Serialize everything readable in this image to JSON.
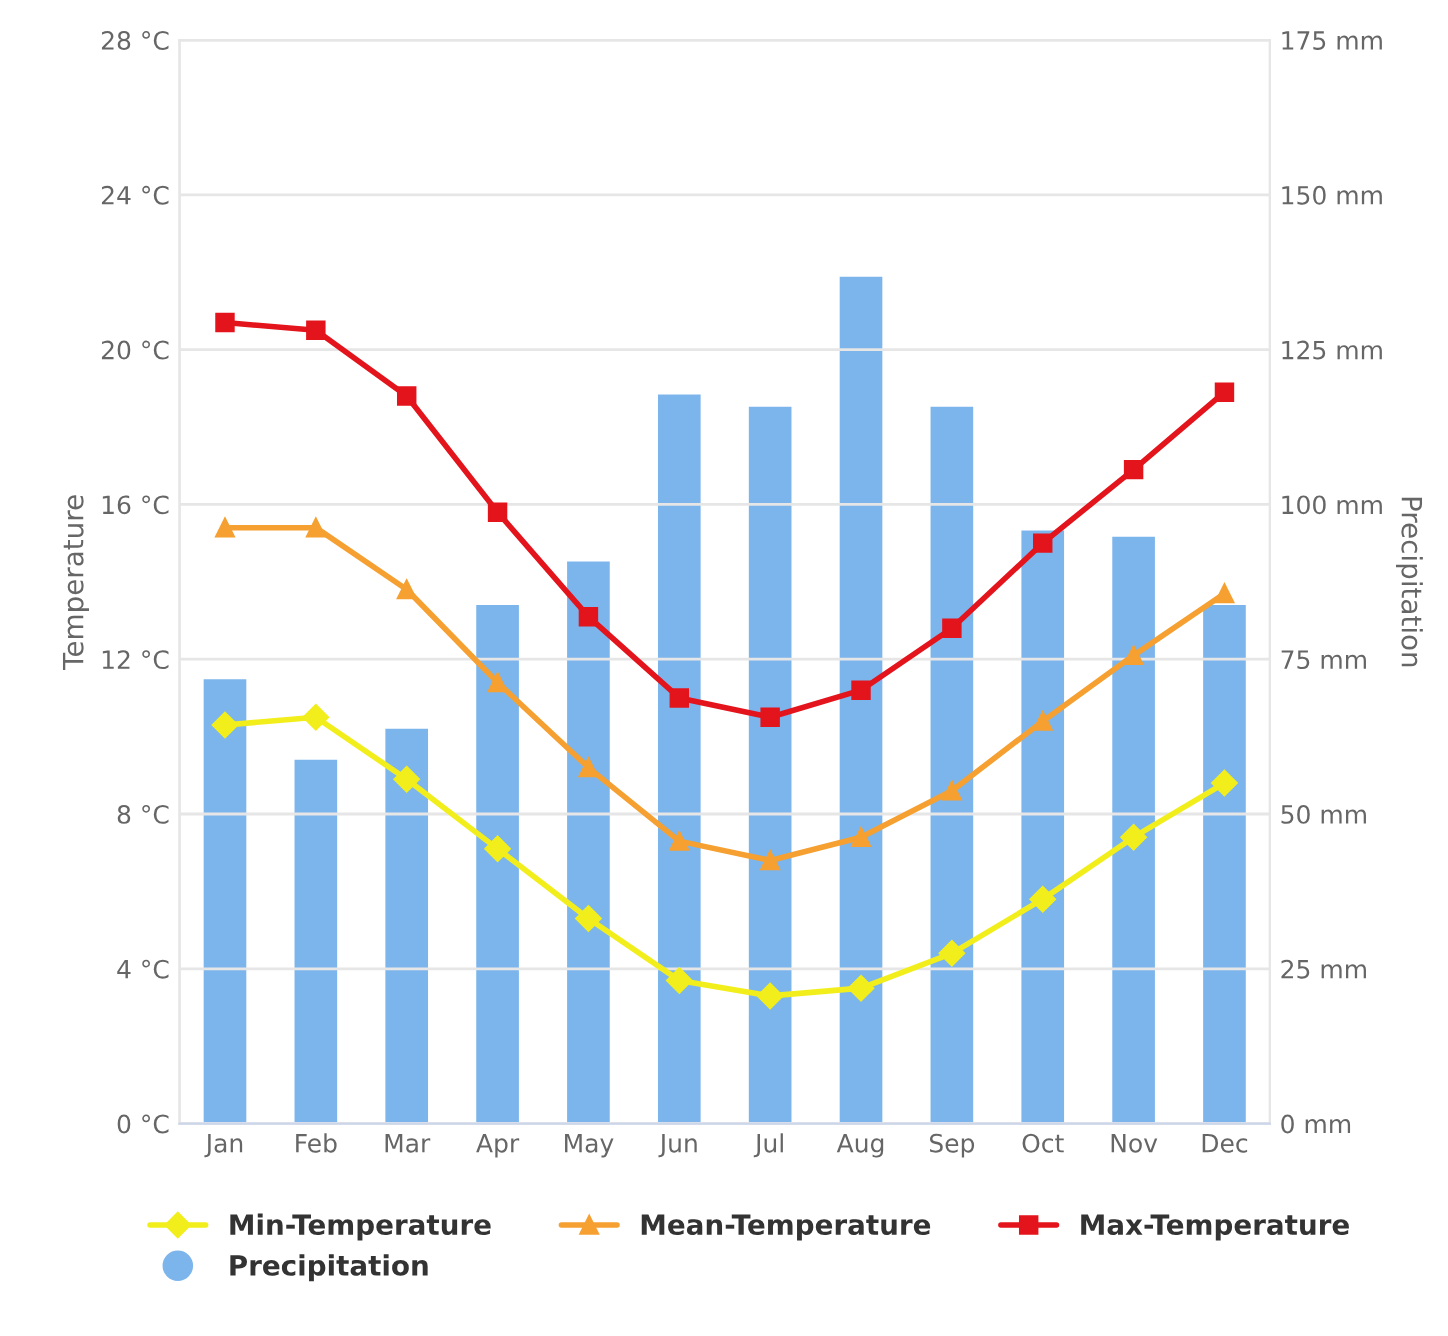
{
  "chart_data": {
    "type": "bar",
    "categories": [
      "Jan",
      "Feb",
      "Mar",
      "Apr",
      "May",
      "Jun",
      "Jul",
      "Aug",
      "Sep",
      "Oct",
      "Nov",
      "Dec"
    ],
    "ylabel": "Temperature",
    "y2label": "Precipitation",
    "ylim": [
      0,
      28
    ],
    "yticks": [
      {
        "value": 0,
        "label": "0 °C"
      },
      {
        "value": 4,
        "label": "4 °C"
      },
      {
        "value": 8,
        "label": "8 °C"
      },
      {
        "value": 12,
        "label": "12 °C"
      },
      {
        "value": 16,
        "label": "16 °C"
      },
      {
        "value": 20,
        "label": "20 °C"
      },
      {
        "value": 24,
        "label": "24 °C"
      },
      {
        "value": 28,
        "label": "28 °C"
      }
    ],
    "y2lim": [
      0,
      175
    ],
    "y2ticks": [
      {
        "value": 0,
        "label": "0 mm"
      },
      {
        "value": 25,
        "label": "25 mm"
      },
      {
        "value": 50,
        "label": "50 mm"
      },
      {
        "value": 75,
        "label": "75 mm"
      },
      {
        "value": 100,
        "label": "100 mm"
      },
      {
        "value": 125,
        "label": "125 mm"
      },
      {
        "value": 150,
        "label": "150 mm"
      },
      {
        "value": 175,
        "label": "175 mm"
      }
    ],
    "grid": "y",
    "legend": "bottom",
    "series": [
      {
        "name": "Precipitation",
        "axis": "y2",
        "color": "#7cb5ec",
        "values": [
          72,
          59,
          64,
          84,
          91,
          118,
          116,
          137,
          116,
          96,
          95,
          84
        ]
      },
      {
        "name": "Min-Temperature",
        "type": "line",
        "marker": "diamond",
        "color": "#f2ee1c",
        "values": [
          10.3,
          10.5,
          8.9,
          7.1,
          5.3,
          3.7,
          3.3,
          3.5,
          4.4,
          5.8,
          7.4,
          8.8
        ]
      },
      {
        "name": "Mean-Temperature",
        "type": "line",
        "marker": "triangle",
        "color": "#f5a030",
        "values": [
          15.4,
          15.4,
          13.8,
          11.4,
          9.2,
          7.3,
          6.8,
          7.4,
          8.6,
          10.4,
          12.1,
          13.7
        ]
      },
      {
        "name": "Max-Temperature",
        "type": "line",
        "marker": "square",
        "color": "#e3141b",
        "values": [
          20.7,
          20.5,
          18.8,
          15.8,
          13.1,
          11.0,
          10.5,
          11.2,
          12.8,
          15.0,
          16.9,
          18.9
        ]
      }
    ]
  }
}
